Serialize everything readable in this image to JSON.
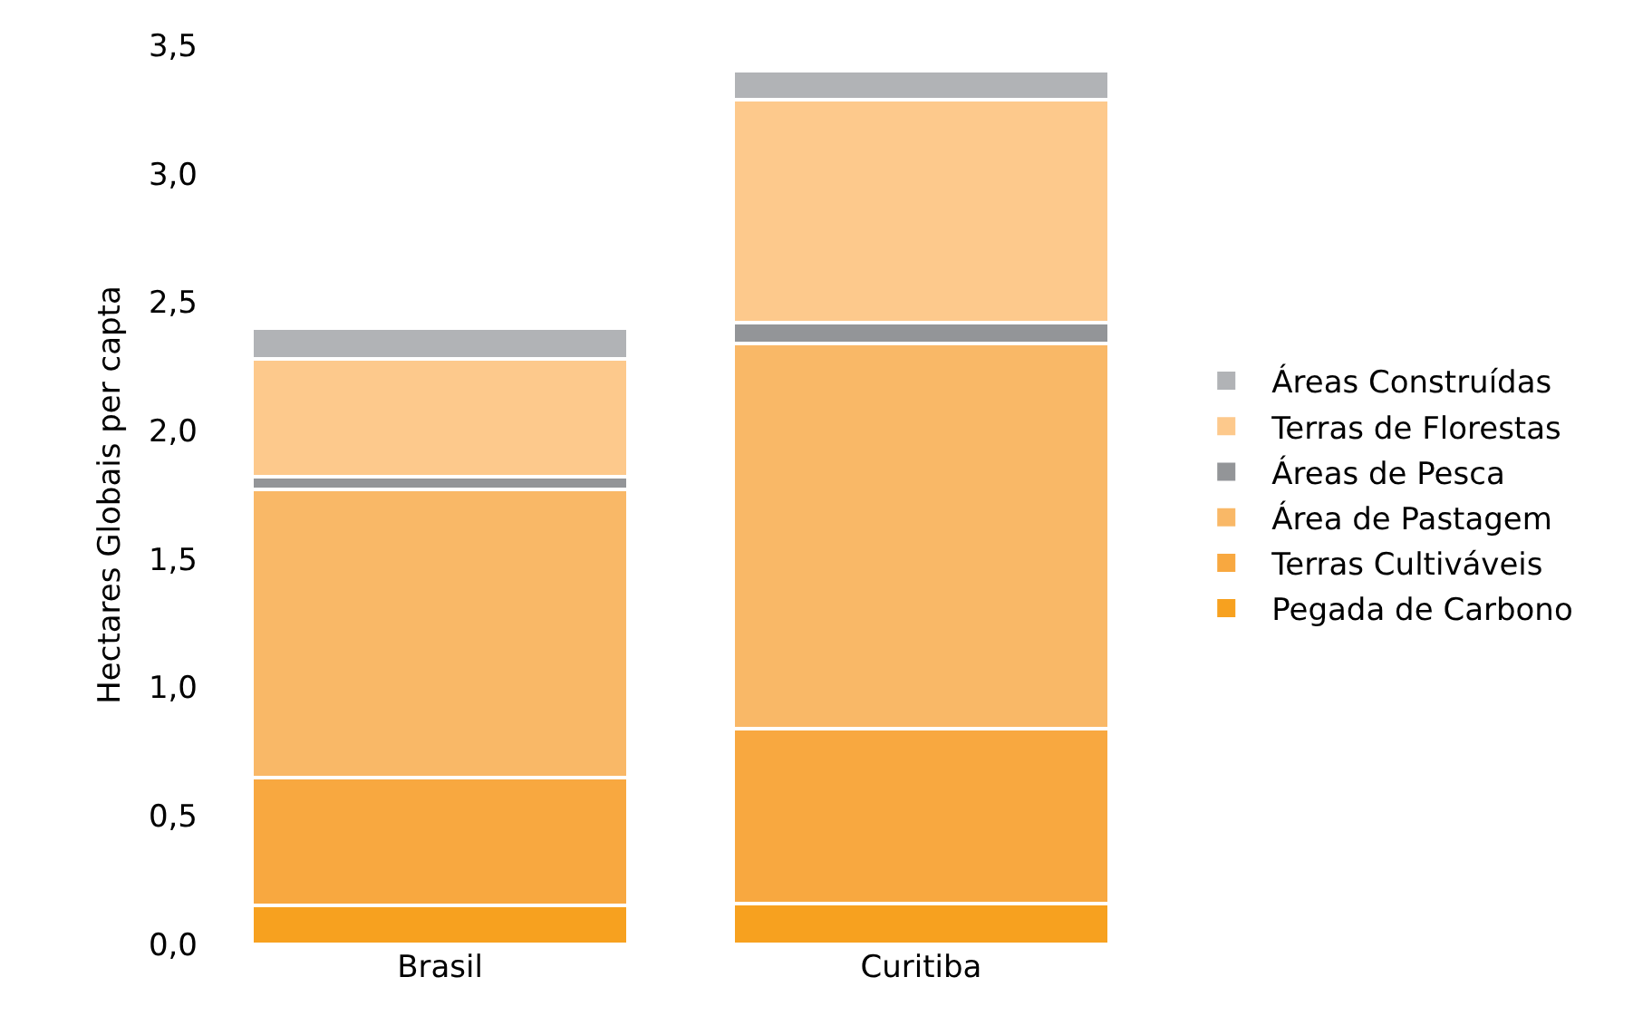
{
  "chart_data": {
    "type": "bar",
    "ylabel": "Hectares Globais per capta",
    "categories": [
      "Brasil",
      "Curitiba"
    ],
    "stacked": true,
    "ylim": [
      0,
      3.5
    ],
    "yticks": [
      {
        "value": 0,
        "label": "0,0"
      },
      {
        "value": 0.5,
        "label": "0,5"
      },
      {
        "value": 1,
        "label": "1,0"
      },
      {
        "value": 1.5,
        "label": "1,5"
      },
      {
        "value": 2,
        "label": "2,0"
      },
      {
        "value": 2.5,
        "label": "2,5"
      },
      {
        "value": 3,
        "label": "3,0"
      },
      {
        "value": 3.5,
        "label": "3,5"
      }
    ],
    "grid": false,
    "legend": "right",
    "series": [
      {
        "name": "Pegada de Carbono",
        "color": "#f7a11f",
        "values": [
          0.15,
          0.16
        ]
      },
      {
        "name": "Terras Cultiváveis",
        "color": "#f8a840",
        "values": [
          0.5,
          0.68
        ]
      },
      {
        "name": "Área de Pastagem",
        "color": "#f9b867",
        "values": [
          1.12,
          1.5
        ]
      },
      {
        "name": "Áreas de Pesca",
        "color": "#939598",
        "values": [
          0.05,
          0.08
        ]
      },
      {
        "name": "Terras de Florestas",
        "color": "#fdc98c",
        "values": [
          0.46,
          0.87
        ]
      },
      {
        "name": "Áreas Construídas",
        "color": "#b1b3b6",
        "values": [
          0.12,
          0.11
        ]
      }
    ]
  }
}
